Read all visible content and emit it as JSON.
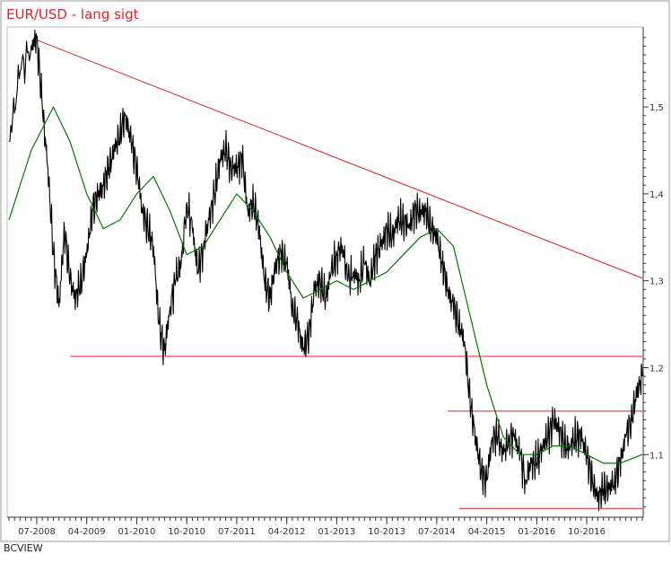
{
  "colors": {
    "price": "#000000",
    "moving_average": "#007800",
    "trendline": "#e02020",
    "frame": "#808080",
    "title": "#e8202a",
    "background": "#ffffff"
  },
  "footer": "BCVIEW",
  "chart_data": {
    "type": "line",
    "title": "EUR/USD - lang sigt",
    "xlabel": "",
    "ylabel": "",
    "x_ticks": [
      "07-2008",
      "04-2009",
      "01-2010",
      "10-2010",
      "07-2011",
      "04-2012",
      "01-2013",
      "10-2013",
      "07-2014",
      "04-2015",
      "01-2016",
      "10-2016"
    ],
    "y_ticks": [
      "1,5",
      "1,4",
      "1,3",
      "1,2",
      "1,1"
    ],
    "ylim": [
      1.03,
      1.59
    ],
    "xlim": [
      "2008-02",
      "2017-08"
    ],
    "grid": false,
    "legend": "none",
    "series": [
      {
        "style": "price",
        "x": [
          "2008-02",
          "2008-04",
          "2008-06",
          "2008-07",
          "2008-08",
          "2008-09",
          "2008-10",
          "2008-11",
          "2008-12",
          "2009-01",
          "2009-02",
          "2009-03",
          "2009-04",
          "2009-05",
          "2009-06",
          "2009-07",
          "2009-08",
          "2009-09",
          "2009-10",
          "2009-11",
          "2009-12",
          "2010-01",
          "2010-02",
          "2010-03",
          "2010-04",
          "2010-05",
          "2010-06",
          "2010-07",
          "2010-08",
          "2010-09",
          "2010-10",
          "2010-11",
          "2010-12",
          "2011-01",
          "2011-02",
          "2011-03",
          "2011-04",
          "2011-05",
          "2011-06",
          "2011-07",
          "2011-08",
          "2011-09",
          "2011-10",
          "2011-11",
          "2011-12",
          "2012-01",
          "2012-02",
          "2012-03",
          "2012-04",
          "2012-05",
          "2012-06",
          "2012-07",
          "2012-08",
          "2012-09",
          "2012-10",
          "2012-11",
          "2012-12",
          "2013-01",
          "2013-02",
          "2013-03",
          "2013-04",
          "2013-05",
          "2013-06",
          "2013-07",
          "2013-08",
          "2013-09",
          "2013-10",
          "2013-11",
          "2013-12",
          "2014-01",
          "2014-02",
          "2014-03",
          "2014-04",
          "2014-05",
          "2014-06",
          "2014-07",
          "2014-08",
          "2014-09",
          "2014-10",
          "2014-11",
          "2014-12",
          "2015-01",
          "2015-02",
          "2015-03",
          "2015-04",
          "2015-05",
          "2015-06",
          "2015-07",
          "2015-08",
          "2015-09",
          "2015-10",
          "2015-11",
          "2015-12",
          "2016-01",
          "2016-02",
          "2016-03",
          "2016-04",
          "2016-05",
          "2016-06",
          "2016-07",
          "2016-08",
          "2016-09",
          "2016-10",
          "2016-11",
          "2016-12",
          "2017-01",
          "2017-02",
          "2017-03",
          "2017-04",
          "2017-05",
          "2017-06",
          "2017-07",
          "2017-08"
        ],
        "values": [
          1.46,
          1.54,
          1.57,
          1.58,
          1.5,
          1.43,
          1.33,
          1.27,
          1.36,
          1.3,
          1.28,
          1.3,
          1.33,
          1.38,
          1.4,
          1.41,
          1.43,
          1.45,
          1.47,
          1.49,
          1.46,
          1.43,
          1.38,
          1.36,
          1.34,
          1.25,
          1.22,
          1.27,
          1.3,
          1.32,
          1.39,
          1.36,
          1.31,
          1.34,
          1.37,
          1.4,
          1.44,
          1.45,
          1.43,
          1.43,
          1.44,
          1.38,
          1.39,
          1.36,
          1.3,
          1.28,
          1.32,
          1.33,
          1.32,
          1.27,
          1.25,
          1.22,
          1.24,
          1.29,
          1.3,
          1.28,
          1.31,
          1.33,
          1.34,
          1.3,
          1.31,
          1.3,
          1.32,
          1.3,
          1.33,
          1.34,
          1.36,
          1.35,
          1.37,
          1.37,
          1.36,
          1.38,
          1.38,
          1.38,
          1.36,
          1.35,
          1.32,
          1.29,
          1.27,
          1.25,
          1.23,
          1.16,
          1.12,
          1.08,
          1.07,
          1.12,
          1.12,
          1.1,
          1.12,
          1.12,
          1.1,
          1.07,
          1.09,
          1.09,
          1.11,
          1.12,
          1.14,
          1.13,
          1.11,
          1.11,
          1.12,
          1.12,
          1.1,
          1.07,
          1.05,
          1.06,
          1.06,
          1.07,
          1.09,
          1.12,
          1.14,
          1.17,
          1.19
        ]
      },
      {
        "style": "moving_average",
        "x": [
          "2008-02",
          "2008-06",
          "2008-10",
          "2009-01",
          "2009-04",
          "2009-07",
          "2009-10",
          "2010-01",
          "2010-04",
          "2010-07",
          "2010-10",
          "2011-01",
          "2011-04",
          "2011-07",
          "2011-10",
          "2012-01",
          "2012-04",
          "2012-07",
          "2012-10",
          "2013-01",
          "2013-04",
          "2013-07",
          "2013-10",
          "2014-01",
          "2014-04",
          "2014-07",
          "2014-10",
          "2015-01",
          "2015-04",
          "2015-07",
          "2015-10",
          "2016-01",
          "2016-04",
          "2016-07",
          "2016-10",
          "2017-01",
          "2017-04",
          "2017-08"
        ],
        "values": [
          1.37,
          1.45,
          1.5,
          1.46,
          1.4,
          1.36,
          1.37,
          1.4,
          1.42,
          1.38,
          1.33,
          1.34,
          1.37,
          1.4,
          1.38,
          1.35,
          1.31,
          1.28,
          1.29,
          1.3,
          1.29,
          1.3,
          1.31,
          1.33,
          1.35,
          1.36,
          1.34,
          1.26,
          1.18,
          1.12,
          1.1,
          1.1,
          1.11,
          1.11,
          1.1,
          1.09,
          1.09,
          1.1
        ]
      }
    ],
    "trendline": {
      "x": [
        "2008-07",
        "2017-08"
      ],
      "values": [
        1.577,
        1.303
      ]
    },
    "hlines": [
      {
        "x": [
          "2009-01",
          "2017-08"
        ],
        "value": 1.213
      },
      {
        "x": [
          "2014-09",
          "2017-08"
        ],
        "value": 1.15
      },
      {
        "x": [
          "2014-11",
          "2017-08"
        ],
        "value": 1.038
      }
    ]
  }
}
